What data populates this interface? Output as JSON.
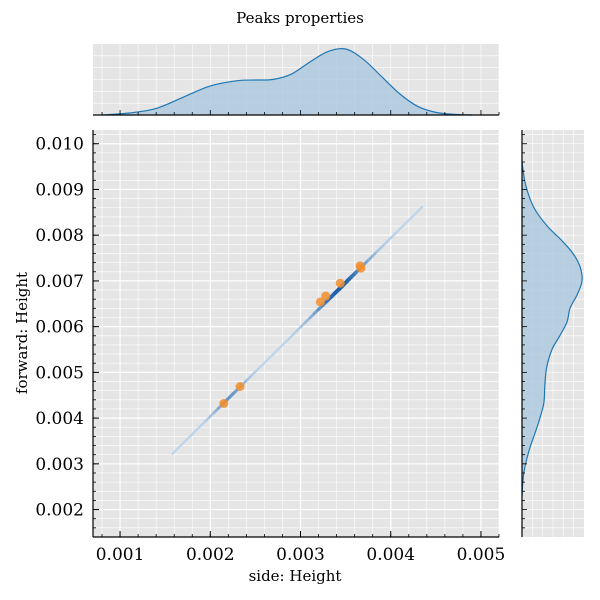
{
  "chart_data": {
    "type": "scatter",
    "title": "Peaks properties",
    "xlabel": "side: Height",
    "ylabel": "forward: Height",
    "xlim": [
      0.0007,
      0.0052
    ],
    "ylim": [
      0.0014,
      0.0103
    ],
    "x_ticks": [
      "0.001",
      "0.002",
      "0.003",
      "0.004",
      "0.005"
    ],
    "x_tick_values": [
      0.001,
      0.002,
      0.003,
      0.004,
      0.005
    ],
    "y_ticks": [
      "0.002",
      "0.003",
      "0.004",
      "0.005",
      "0.006",
      "0.007",
      "0.008",
      "0.009",
      "0.010"
    ],
    "y_tick_values": [
      0.002,
      0.003,
      0.004,
      0.005,
      0.006,
      0.007,
      0.008,
      0.009,
      0.01
    ],
    "grid": true,
    "background": "#e5e5e5",
    "density_line": {
      "x": [
        0.00158,
        0.00435
      ],
      "y": [
        0.00322,
        0.00862
      ],
      "color_light": "#dbe9f6",
      "color_dark": "#1a5ea8"
    },
    "highlighted_points": {
      "color": "#f28e2b",
      "x": [
        0.00215,
        0.00233,
        0.00322,
        0.00328,
        0.00344,
        0.00366,
        0.00367
      ],
      "y": [
        0.00432,
        0.00469,
        0.00654,
        0.00667,
        0.00695,
        0.00733,
        0.00728
      ]
    },
    "marginal_x": {
      "type": "kde",
      "color": "#1f77b4",
      "fill": "#aac8dd",
      "x": [
        0.0008,
        0.0011,
        0.0014,
        0.0017,
        0.002,
        0.0023,
        0.0025,
        0.0027,
        0.0029,
        0.0031,
        0.0033,
        0.0035,
        0.0037,
        0.0039,
        0.0041,
        0.0043,
        0.0045,
        0.0047,
        0.0049
      ],
      "density": [
        0.0,
        0.03,
        0.1,
        0.27,
        0.44,
        0.52,
        0.53,
        0.54,
        0.62,
        0.8,
        0.96,
        1.0,
        0.84,
        0.58,
        0.32,
        0.13,
        0.04,
        0.01,
        0.0
      ]
    },
    "marginal_y": {
      "type": "kde",
      "color": "#1f77b4",
      "fill": "#aac8dd",
      "y": [
        0.0023,
        0.0028,
        0.0033,
        0.0038,
        0.0043,
        0.0047,
        0.0051,
        0.0055,
        0.0058,
        0.0061,
        0.0064,
        0.0067,
        0.007,
        0.0073,
        0.0076,
        0.0079,
        0.0082,
        0.0086,
        0.0091,
        0.0096
      ],
      "density": [
        0.0,
        0.03,
        0.12,
        0.25,
        0.36,
        0.38,
        0.41,
        0.5,
        0.63,
        0.75,
        0.8,
        0.92,
        1.0,
        0.97,
        0.85,
        0.65,
        0.42,
        0.2,
        0.06,
        0.0
      ]
    }
  }
}
